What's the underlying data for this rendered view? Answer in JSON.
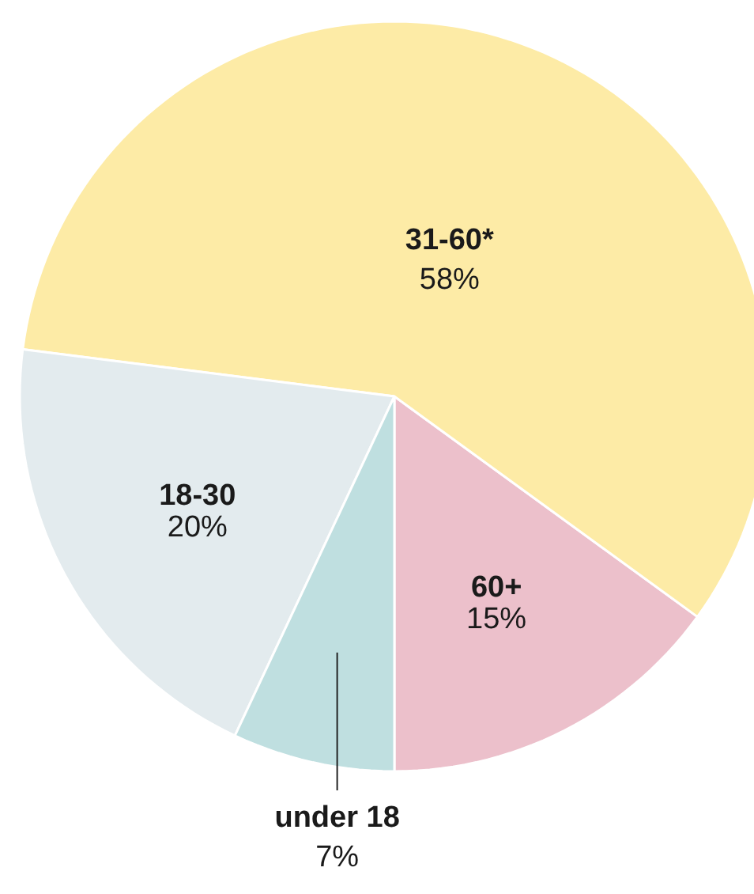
{
  "chart_data": {
    "type": "pie",
    "categories": [
      "60+",
      "31-60*",
      "18-30",
      "under 18"
    ],
    "values": [
      15,
      58,
      20,
      7
    ],
    "colors": [
      "#ecc0cb",
      "#fdeba6",
      "#e3ebee",
      "#bfdfe0"
    ],
    "value_labels": [
      "15%",
      "58%",
      "20%",
      "7%"
    ]
  }
}
